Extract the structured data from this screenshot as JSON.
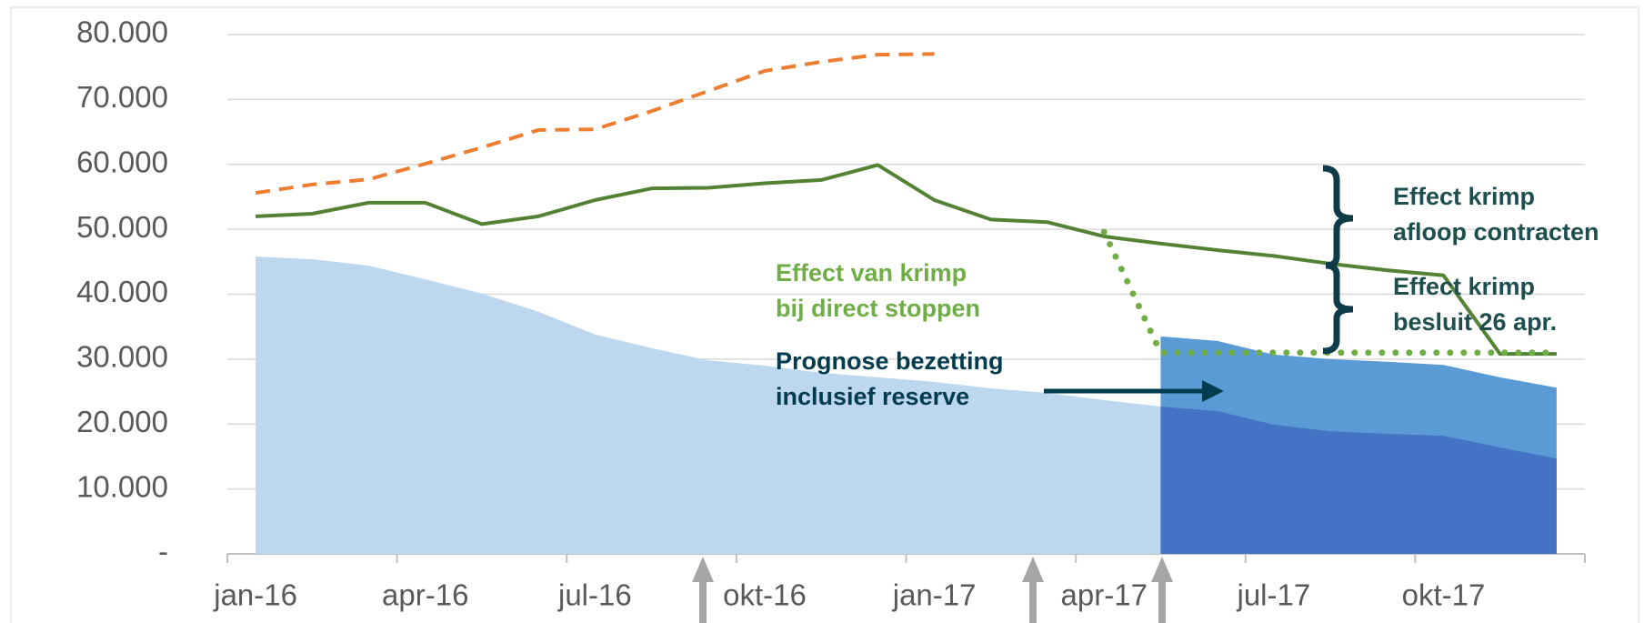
{
  "chart_data": {
    "type": "area",
    "categories": [
      "jan-16",
      null,
      null,
      "apr-16",
      null,
      null,
      "jul-16",
      null,
      null,
      "okt-16",
      null,
      null,
      "jan-17",
      null,
      null,
      "apr-17",
      null,
      null,
      "jul-17",
      null,
      null,
      "okt-17",
      null,
      null
    ],
    "ylim": [
      0,
      80000
    ],
    "yticks": [
      {
        "value": 0,
        "label": "-"
      },
      {
        "value": 10000,
        "label": "10.000"
      },
      {
        "value": 20000,
        "label": "20.000"
      },
      {
        "value": 30000,
        "label": "30.000"
      },
      {
        "value": 40000,
        "label": "40.000"
      },
      {
        "value": 50000,
        "label": "50.000"
      },
      {
        "value": 60000,
        "label": "60.000"
      },
      {
        "value": 70000,
        "label": "70.000"
      },
      {
        "value": 80000,
        "label": "80.000"
      }
    ],
    "grid": true,
    "series": [
      {
        "kind": "area",
        "color": "#bdd7ee",
        "values": [
          45800,
          45400,
          44400,
          42300,
          40100,
          37300,
          33800,
          31700,
          29800,
          29000,
          27900,
          27200,
          26500,
          25500,
          24800,
          23700,
          22700,
          null,
          null,
          null,
          null,
          null,
          null,
          null
        ]
      },
      {
        "kind": "area",
        "color": "#5b9bd5",
        "values": [
          null,
          null,
          null,
          null,
          null,
          null,
          null,
          null,
          null,
          null,
          null,
          null,
          null,
          null,
          null,
          null,
          33500,
          32800,
          30700,
          30000,
          29600,
          29100,
          27200,
          25600
        ]
      },
      {
        "kind": "area",
        "color": "#4472c4",
        "values": [
          null,
          null,
          null,
          null,
          null,
          null,
          null,
          null,
          null,
          null,
          null,
          null,
          null,
          null,
          null,
          null,
          22700,
          22000,
          19900,
          18900,
          18500,
          18200,
          16400,
          14700
        ]
      },
      {
        "kind": "line",
        "style": "dashed",
        "color": "#ed7d31",
        "values": [
          55600,
          56900,
          57700,
          60100,
          62600,
          65300,
          65400,
          68200,
          71300,
          74400,
          75800,
          76900,
          77000,
          null,
          null,
          null,
          null,
          null,
          null,
          null,
          null,
          null,
          null,
          null
        ]
      },
      {
        "kind": "line",
        "style": "solid",
        "color": "#548235",
        "values": [
          52000,
          52400,
          54100,
          54100,
          50800,
          52000,
          54500,
          56300,
          56400,
          57100,
          57600,
          59900,
          54500,
          51500,
          51100,
          48900,
          47800,
          46800,
          45900,
          44700,
          43700,
          42900,
          30800,
          30800
        ]
      },
      {
        "kind": "line",
        "style": "dotted",
        "color": "#70ad47",
        "values": [
          null,
          null,
          null,
          null,
          null,
          null,
          null,
          null,
          null,
          null,
          null,
          null,
          null,
          null,
          null,
          49600,
          31000,
          31000,
          31000,
          31000,
          31000,
          31000,
          31000,
          31000
        ]
      }
    ],
    "annotations": [
      {
        "lines": [
          "Effect van krimp",
          "bij direct stoppen"
        ],
        "color": "#70ad47"
      },
      {
        "lines": [
          "Prognose bezetting",
          "inclusief reserve"
        ],
        "color": "#003c50"
      },
      {
        "lines": [
          "Effect krimp",
          "afloop contracten"
        ],
        "color": "#1f4e4f"
      },
      {
        "lines": [
          "Effect krimp",
          "besluit 26 apr."
        ],
        "color": "#1f4e4f"
      }
    ]
  }
}
